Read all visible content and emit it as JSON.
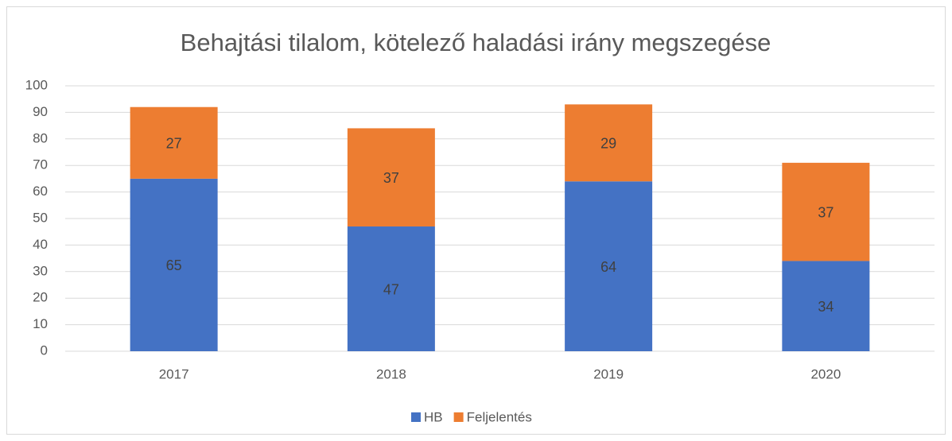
{
  "chart_data": {
    "type": "stacked_bar",
    "title": "Behajtási tilalom, kötelező haladási irány megszegése",
    "categories": [
      "2017",
      "2018",
      "2019",
      "2020"
    ],
    "series": [
      {
        "name": "HB",
        "color": "#4472c4",
        "values": [
          65,
          47,
          64,
          34
        ]
      },
      {
        "name": "Feljelentés",
        "color": "#ed7d31",
        "values": [
          27,
          37,
          29,
          37
        ]
      }
    ],
    "ylim": [
      0,
      100
    ],
    "yticks": [
      0,
      10,
      20,
      30,
      40,
      50,
      60,
      70,
      80,
      90,
      100
    ],
    "grid": true,
    "legend": "bottom"
  }
}
